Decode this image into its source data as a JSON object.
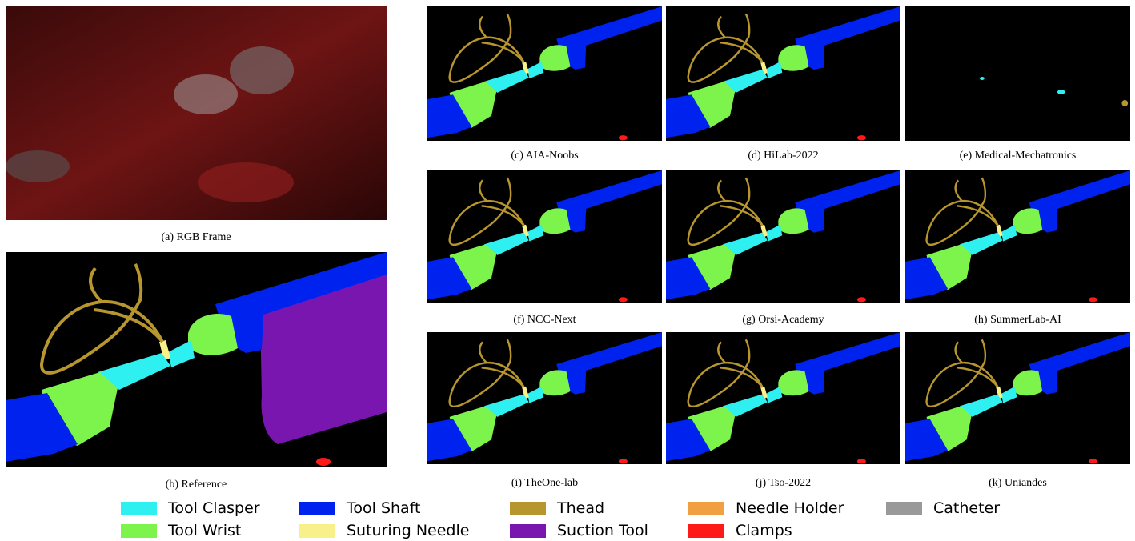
{
  "panels": [
    {
      "caption": "(a) RGB Frame"
    },
    {
      "caption": "(b) Reference"
    },
    {
      "caption": "(c) AIA-Noobs"
    },
    {
      "caption": "(d) HiLab-2022"
    },
    {
      "caption": "(e) Medical-Mechatronics"
    },
    {
      "caption": "(f) NCC-Next"
    },
    {
      "caption": "(g) Orsi-Academy"
    },
    {
      "caption": "(h) SummerLab-AI"
    },
    {
      "caption": "(i) TheOne-lab"
    },
    {
      "caption": "(j) Tso-2022"
    },
    {
      "caption": "(k) Uniandes"
    }
  ],
  "legend": [
    {
      "label": "Tool Clasper",
      "color": "#2ef0f0"
    },
    {
      "label": "Tool Shaft",
      "color": "#0022ee"
    },
    {
      "label": "Thead",
      "color": "#b8962e"
    },
    {
      "label": "Needle Holder",
      "color": "#f0a040"
    },
    {
      "label": "Catheter",
      "color": "#999999"
    },
    {
      "label": "Tool Wrist",
      "color": "#7cf44c"
    },
    {
      "label": "Suturing Needle",
      "color": "#f8f08a"
    },
    {
      "label": "Suction Tool",
      "color": "#7a16b0"
    },
    {
      "label": "Clamps",
      "color": "#ff1a1a"
    }
  ]
}
